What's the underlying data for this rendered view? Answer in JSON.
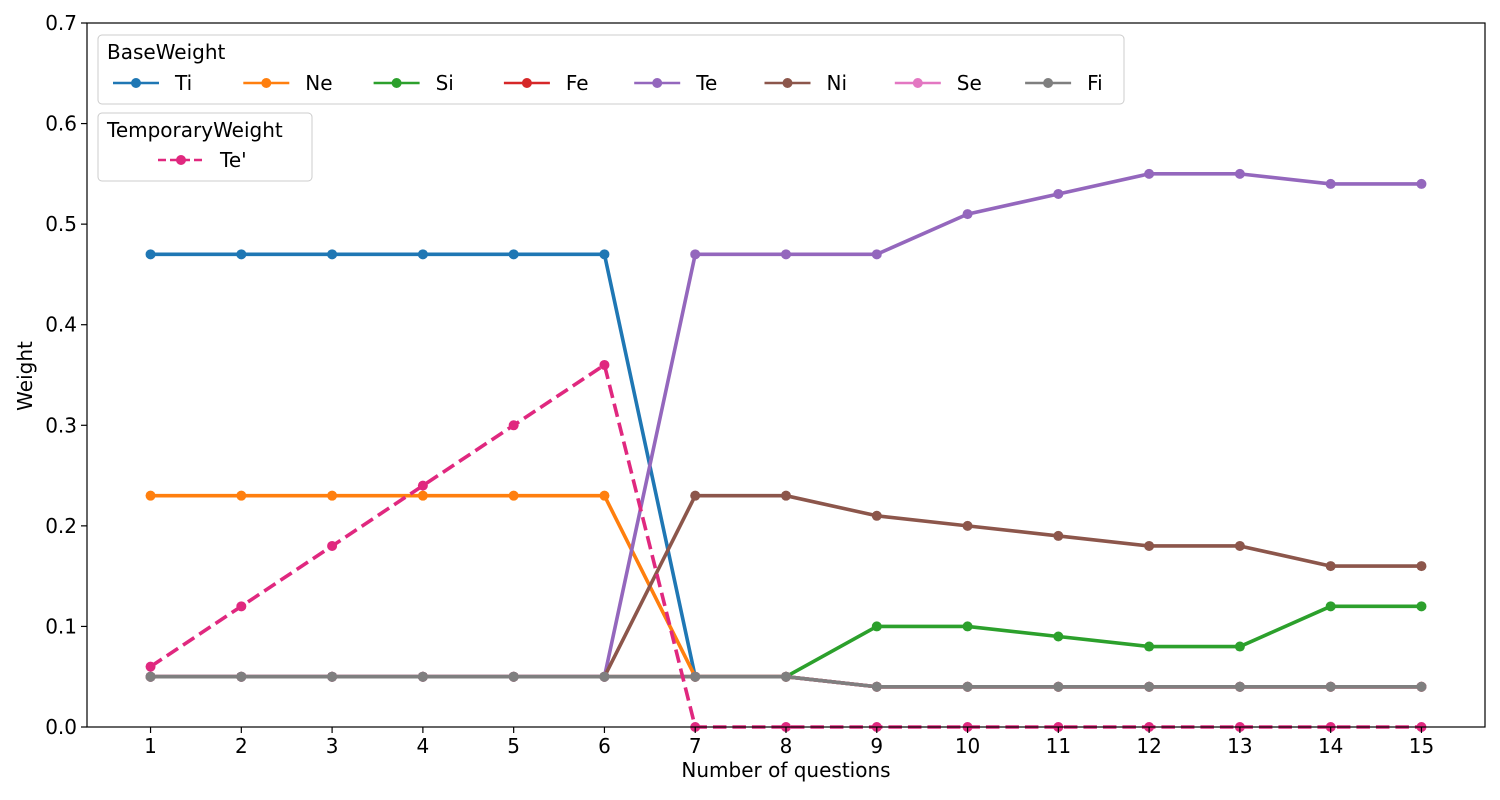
{
  "chart_data": {
    "type": "line",
    "xlabel": "Number of questions",
    "ylabel": "Weight",
    "ylim": [
      0,
      0.7
    ],
    "yticks": [
      "0.0",
      "0.1",
      "0.2",
      "0.3",
      "0.4",
      "0.5",
      "0.6",
      "0.7"
    ],
    "x": [
      1,
      2,
      3,
      4,
      5,
      6,
      7,
      8,
      9,
      10,
      11,
      12,
      13,
      14,
      15
    ],
    "grid": false,
    "legends": [
      {
        "title": "BaseWeight",
        "placement": "top-left",
        "series_group": "base"
      },
      {
        "title": "TemporaryWeight",
        "placement": "top-left",
        "series_group": "temporary"
      }
    ],
    "series": [
      {
        "name": "Ti",
        "group": "base",
        "color": "#1f77b4",
        "dashed": false,
        "values": [
          0.47,
          0.47,
          0.47,
          0.47,
          0.47,
          0.47,
          0.05,
          0.05,
          0.04,
          0.04,
          0.04,
          0.04,
          0.04,
          0.04,
          0.04
        ]
      },
      {
        "name": "Ne",
        "group": "base",
        "color": "#ff7f0e",
        "dashed": false,
        "values": [
          0.23,
          0.23,
          0.23,
          0.23,
          0.23,
          0.23,
          0.05,
          0.05,
          0.04,
          0.04,
          0.04,
          0.04,
          0.04,
          0.04,
          0.04
        ]
      },
      {
        "name": "Si",
        "group": "base",
        "color": "#2ca02c",
        "dashed": false,
        "values": [
          0.05,
          0.05,
          0.05,
          0.05,
          0.05,
          0.05,
          0.05,
          0.05,
          0.1,
          0.1,
          0.09,
          0.08,
          0.08,
          0.12,
          0.12
        ]
      },
      {
        "name": "Fe",
        "group": "base",
        "color": "#d62728",
        "dashed": false,
        "values": [
          0.05,
          0.05,
          0.05,
          0.05,
          0.05,
          0.05,
          0.05,
          0.05,
          0.04,
          0.04,
          0.04,
          0.04,
          0.04,
          0.04,
          0.04
        ]
      },
      {
        "name": "Te",
        "group": "base",
        "color": "#9467bd",
        "dashed": false,
        "values": [
          0.05,
          0.05,
          0.05,
          0.05,
          0.05,
          0.05,
          0.47,
          0.47,
          0.47,
          0.51,
          0.53,
          0.55,
          0.55,
          0.54,
          0.54
        ]
      },
      {
        "name": "Ni",
        "group": "base",
        "color": "#8c564b",
        "dashed": false,
        "values": [
          0.05,
          0.05,
          0.05,
          0.05,
          0.05,
          0.05,
          0.23,
          0.23,
          0.21,
          0.2,
          0.19,
          0.18,
          0.18,
          0.16,
          0.16
        ]
      },
      {
        "name": "Se",
        "group": "base",
        "color": "#e377c2",
        "dashed": false,
        "values": [
          0.05,
          0.05,
          0.05,
          0.05,
          0.05,
          0.05,
          0.05,
          0.05,
          0.04,
          0.04,
          0.04,
          0.04,
          0.04,
          0.04,
          0.04
        ]
      },
      {
        "name": "Fi",
        "group": "base",
        "color": "#7f7f7f",
        "dashed": false,
        "values": [
          0.05,
          0.05,
          0.05,
          0.05,
          0.05,
          0.05,
          0.05,
          0.05,
          0.04,
          0.04,
          0.04,
          0.04,
          0.04,
          0.04,
          0.04
        ]
      },
      {
        "name": "Te'",
        "group": "temporary",
        "color": "#e0287f",
        "dashed": true,
        "values": [
          0.06,
          0.12,
          0.18,
          0.24,
          0.3,
          0.36,
          0.0,
          0.0,
          0.0,
          0.0,
          0.0,
          0.0,
          0.0,
          0.0,
          0.0
        ]
      }
    ]
  }
}
